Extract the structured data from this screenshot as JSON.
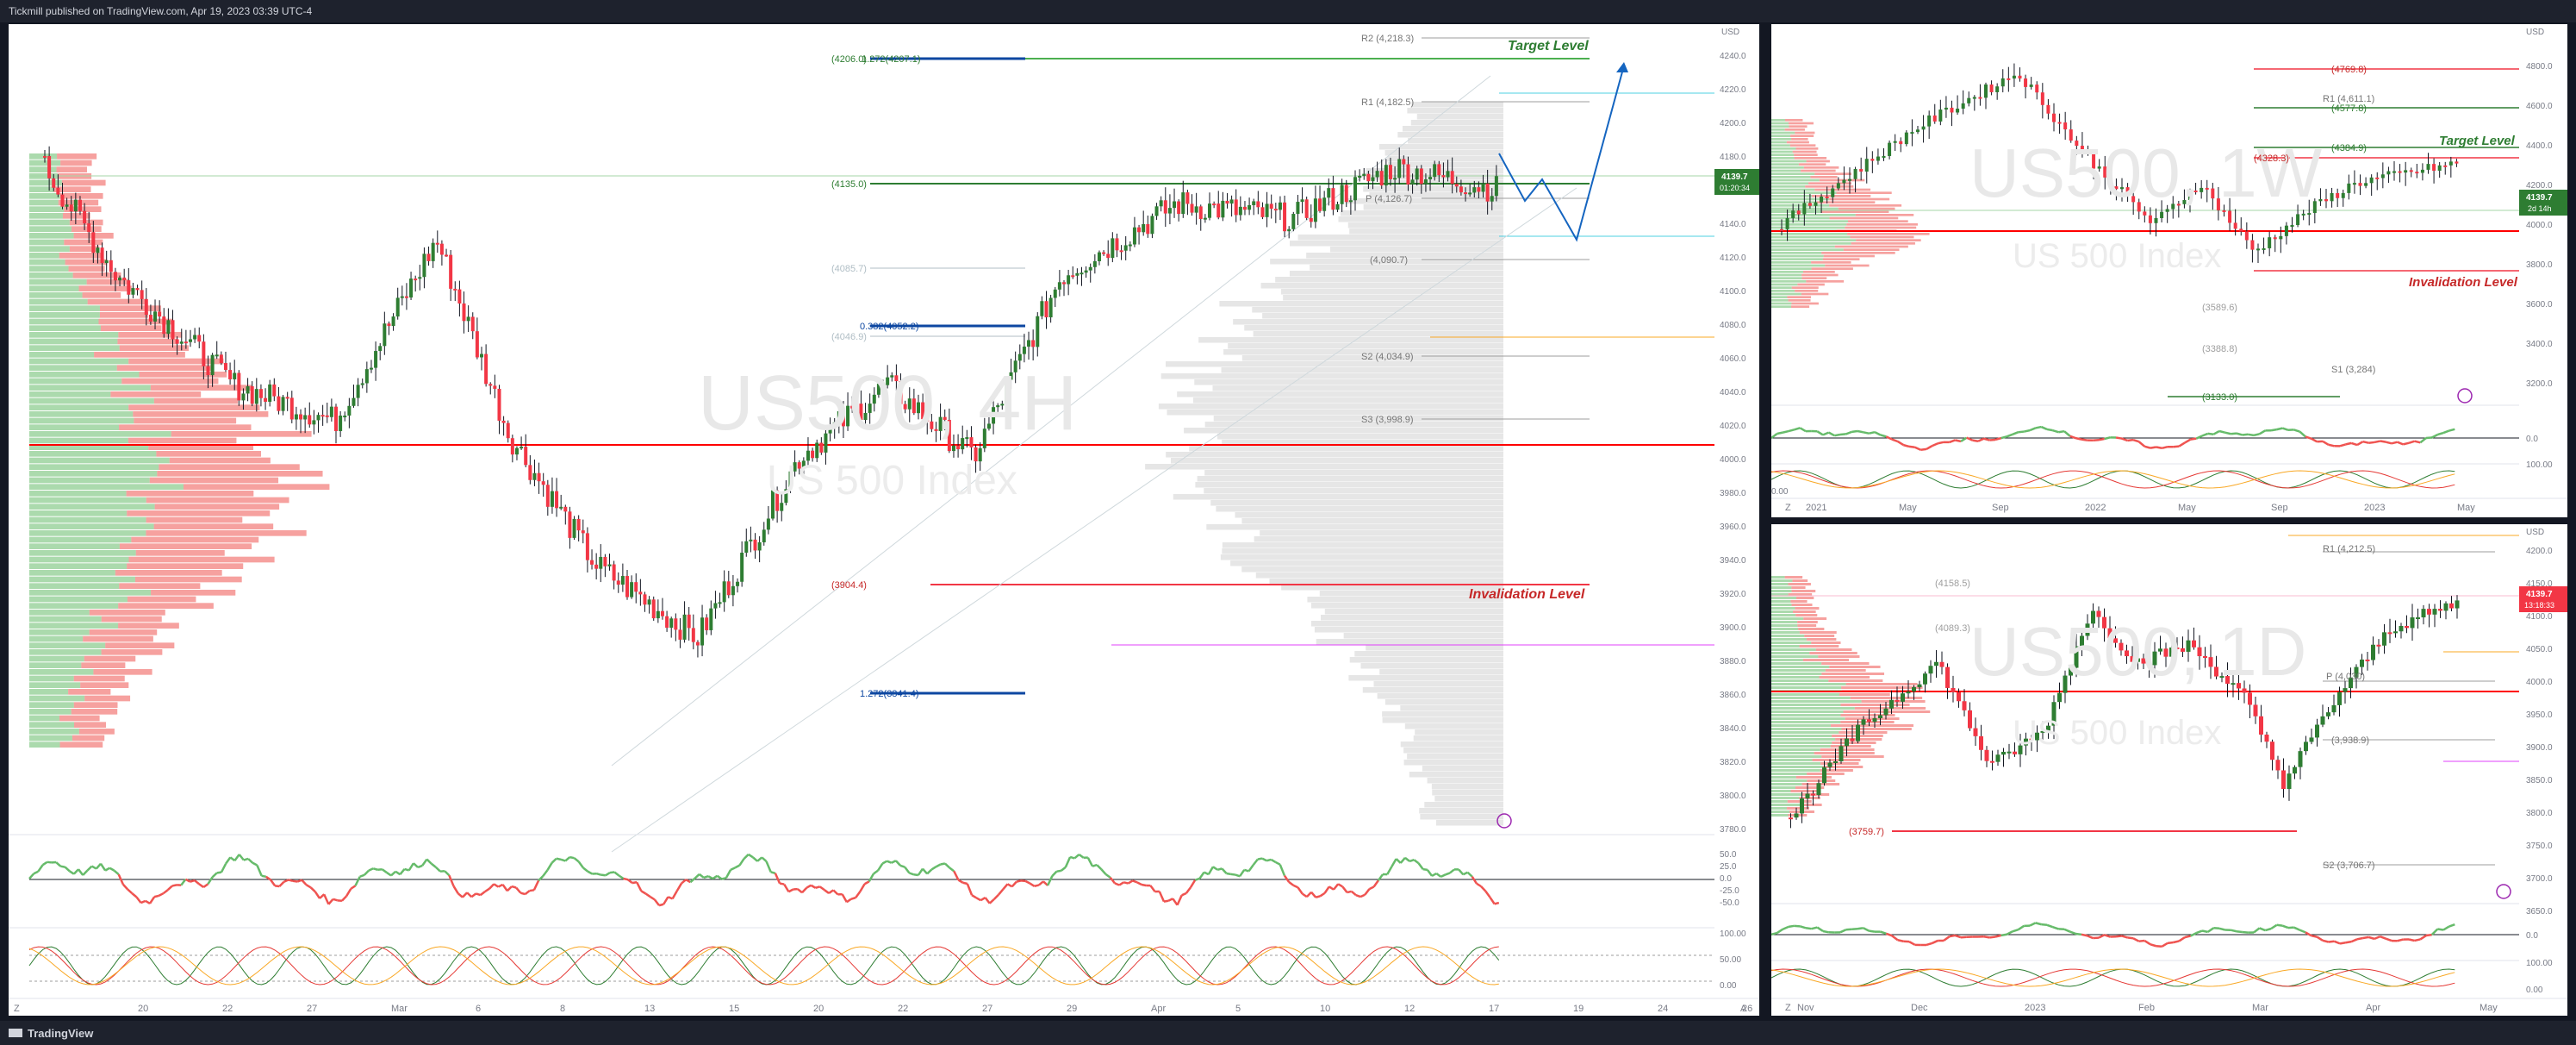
{
  "header": {
    "publisher_line": "Tickmill published on TradingView.com, Apr 19, 2023 03:39 UTC-4"
  },
  "footer": {
    "brand": "TradingView"
  },
  "colors": {
    "bull": "#2e7d32",
    "bear": "#f23645",
    "green_line": "#4caf50",
    "red_line": "#ff0000",
    "blue_level": "#0d47a1",
    "bg": "#ffffff",
    "frame": "#131722"
  },
  "main_chart": {
    "watermark_symbol": "US500, 4H",
    "watermark_name": "US 500 Index",
    "price_axis": [
      "4240.0",
      "4220.0",
      "4200.0",
      "4180.0",
      "4160.0",
      "4140.0",
      "4120.0",
      "4100.0",
      "4080.0",
      "4060.0",
      "4040.0",
      "4020.0",
      "4000.0",
      "3980.0",
      "3960.0",
      "3940.0",
      "3920.0",
      "3900.0",
      "3880.0",
      "3860.0",
      "3840.0",
      "3820.0",
      "3800.0",
      "3780.0"
    ],
    "axis_unit": "USD",
    "current_price": "4139.7",
    "countdown": "01:20:34",
    "time_axis": [
      "20",
      "22",
      "27",
      "Mar",
      "6",
      "8",
      "13",
      "15",
      "20",
      "22",
      "27",
      "29",
      "Apr",
      "5",
      "10",
      "12",
      "17",
      "19",
      "24",
      "26"
    ],
    "annotations": {
      "target_label": "Target Level",
      "invalidation_label": "Invalidation Level",
      "fib_levels": [
        {
          "label": "1.272(4207.1)",
          "prefix": "(4206.0)"
        },
        {
          "label": "0.382(4052.2)"
        },
        {
          "label": "1.272(3841.4)"
        }
      ],
      "level_4135": "(4135.0)",
      "level_3904": "(3904.4)",
      "level_4085": "(4085.7)",
      "level_4046": "(4046.9)",
      "pivots": [
        {
          "label": "R2 (4,218.3)"
        },
        {
          "label": "R1 (4,182.5)"
        },
        {
          "label": "P (4,126.7)"
        },
        {
          "label": "(4,090.7)"
        },
        {
          "label": "S2 (4,034.9)"
        },
        {
          "label": "S3 (3,998.9)"
        }
      ]
    },
    "rsi_axis": [
      "50.0",
      "25.0",
      "0.0",
      "-25.0",
      "-50.0"
    ],
    "stoch_axis": [
      "100.00",
      "50.00",
      "0.00"
    ]
  },
  "chart_weekly": {
    "watermark_symbol": "US500, 1W",
    "watermark_name": "US 500 Index",
    "price_axis": [
      "4800.0",
      "4600.0",
      "4400.0",
      "4200.0",
      "4000.0",
      "3800.0",
      "3600.0",
      "3400.0",
      "3200.0"
    ],
    "axis_unit": "USD",
    "current_price": "4139.7",
    "countdown": "2d 14h",
    "time_axis": [
      "2021",
      "May",
      "Sep",
      "2022",
      "May",
      "Sep",
      "2023",
      "May"
    ],
    "labels": {
      "l4769": "(4769.8)",
      "l4577": "(4577.8)",
      "r1": "R1 (4,611.1)",
      "l4384": "(4384.9)",
      "l4328": "(4328.3)",
      "target": "Target Level",
      "invalidation": "Invalidation Level",
      "l3589": "(3589.6)",
      "l3388": "(3388.8)",
      "s1": "S1 (3,284)",
      "l3133": "(3133.0)"
    },
    "rsi_axis": [
      "0.0"
    ],
    "stoch_axis": [
      "100.00",
      "0.00"
    ]
  },
  "chart_daily": {
    "watermark_symbol": "US500, 1D",
    "watermark_name": "US 500 Index",
    "price_axis": [
      "4200.0",
      "4150.0",
      "4100.0",
      "4050.0",
      "4000.0",
      "3950.0",
      "3900.0",
      "3850.0",
      "3800.0",
      "3750.0",
      "3700.0",
      "3650.0"
    ],
    "axis_unit": "USD",
    "current_price": "4139.7",
    "countdown": "13:18:33",
    "time_axis": [
      "Nov",
      "Dec",
      "2023",
      "Feb",
      "Mar",
      "Apr",
      "May"
    ],
    "labels": {
      "r1": "R1 (4,212.5)",
      "l4158": "(4158.5)",
      "l4089": "(4089.3)",
      "p": "P (4,030)",
      "s1": "(3,938.9)",
      "l3759": "(3759.7)",
      "s2": "S2 (3,706.7)"
    },
    "rsi_axis": [
      "0.0"
    ],
    "stoch_axis": [
      "100.00",
      "0.00"
    ]
  }
}
